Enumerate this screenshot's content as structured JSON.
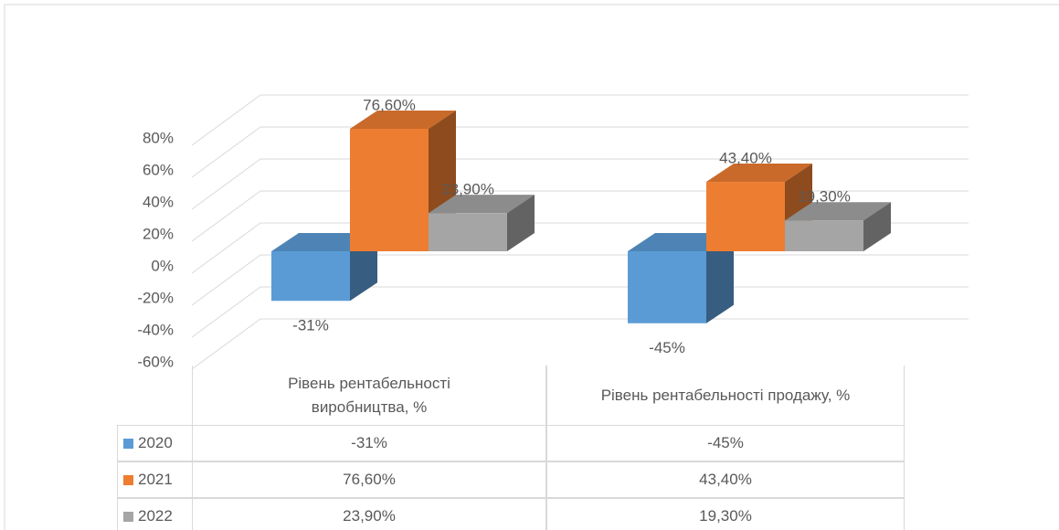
{
  "chart_data": {
    "type": "bar",
    "categories": [
      "Рівень рентабельності виробництва, %",
      "Рівень рентабельності продажу, %"
    ],
    "series": [
      {
        "name": "2020",
        "color": "#5b9bd5",
        "values": [
          -31,
          -45
        ],
        "value_labels": [
          "-31%",
          "-45%"
        ]
      },
      {
        "name": "2021",
        "color": "#ed7d31",
        "values": [
          76.6,
          43.4
        ],
        "value_labels": [
          "76,60%",
          "43,40%"
        ]
      },
      {
        "name": "2022",
        "color": "#a5a5a5",
        "values": [
          23.9,
          19.3
        ],
        "value_labels": [
          "23,90%",
          "19,30%"
        ]
      }
    ],
    "ylim": [
      -60,
      80
    ],
    "yticks": [
      {
        "value": -60,
        "label": "-60%"
      },
      {
        "value": -40,
        "label": "-40%"
      },
      {
        "value": -20,
        "label": "-20%"
      },
      {
        "value": 0,
        "label": "0%"
      },
      {
        "value": 20,
        "label": "20%"
      },
      {
        "value": 40,
        "label": "40%"
      },
      {
        "value": 60,
        "label": "60%"
      },
      {
        "value": 80,
        "label": "80%"
      }
    ],
    "grid": true,
    "data_table": true
  }
}
